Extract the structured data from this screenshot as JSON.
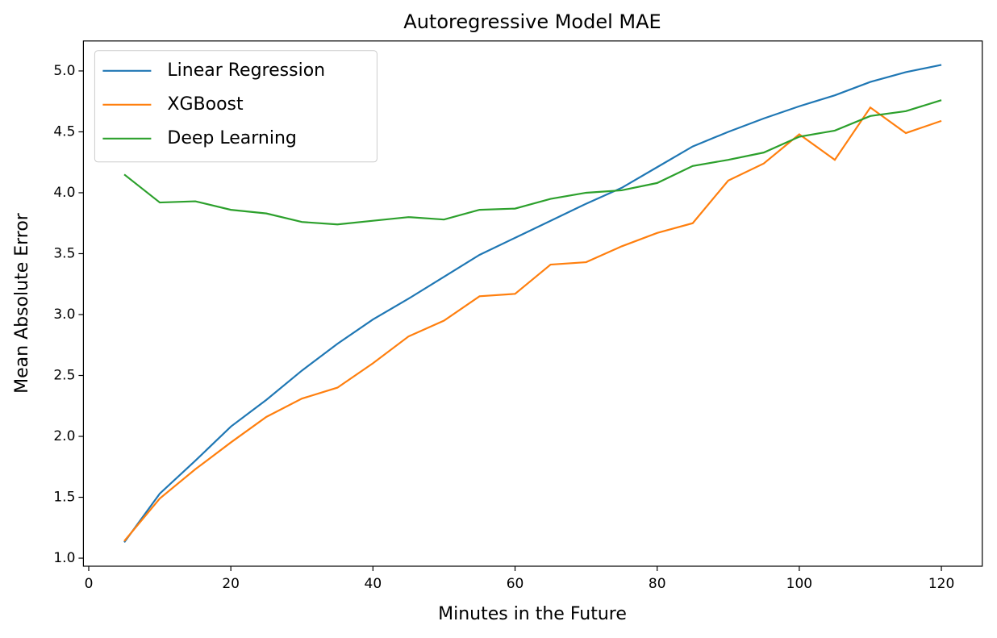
{
  "chart_data": {
    "type": "line",
    "title": "Autoregressive Model MAE",
    "x_label": "Minutes in the Future",
    "y_label": "Mean Absolute Error",
    "x": [
      5,
      10,
      15,
      20,
      25,
      30,
      35,
      40,
      45,
      50,
      55,
      60,
      65,
      70,
      75,
      80,
      85,
      90,
      95,
      100,
      105,
      110,
      115,
      120
    ],
    "series": [
      {
        "name": "Linear Regression",
        "color": "#1f77b4",
        "values": [
          1.13,
          1.53,
          1.8,
          2.08,
          2.3,
          2.54,
          2.76,
          2.96,
          3.13,
          3.31,
          3.49,
          3.63,
          3.77,
          3.91,
          4.04,
          4.21,
          4.38,
          4.5,
          4.61,
          4.71,
          4.8,
          4.91,
          4.99,
          5.05
        ]
      },
      {
        "name": "XGBoost",
        "color": "#ff7f0e",
        "values": [
          1.14,
          1.49,
          1.73,
          1.95,
          2.16,
          2.31,
          2.4,
          2.6,
          2.82,
          2.95,
          3.15,
          3.17,
          3.41,
          3.43,
          3.56,
          3.67,
          3.75,
          4.1,
          4.24,
          4.48,
          4.27,
          4.7,
          4.49,
          4.59
        ]
      },
      {
        "name": "Deep Learning",
        "color": "#2ca02c",
        "values": [
          4.15,
          3.92,
          3.93,
          3.86,
          3.83,
          3.76,
          3.74,
          3.77,
          3.8,
          3.78,
          3.86,
          3.87,
          3.95,
          4.0,
          4.02,
          4.08,
          4.22,
          4.27,
          4.33,
          4.46,
          4.51,
          4.63,
          4.67,
          4.76
        ]
      }
    ],
    "xlim": [
      -0.75,
      125.75
    ],
    "xticks": [
      0,
      20,
      40,
      60,
      80,
      100,
      120
    ],
    "ylim": [
      0.934,
      5.246
    ],
    "yticks": [
      {
        "value": 1.0,
        "label": "1.0"
      },
      {
        "value": 1.5,
        "label": "1.5"
      },
      {
        "value": 2.0,
        "label": "2.0"
      },
      {
        "value": 2.5,
        "label": "2.5"
      },
      {
        "value": 3.0,
        "label": "3.0"
      },
      {
        "value": 3.5,
        "label": "3.5"
      },
      {
        "value": 4.0,
        "label": "4.0"
      },
      {
        "value": 4.5,
        "label": "4.5"
      },
      {
        "value": 5.0,
        "label": "5.0"
      }
    ],
    "grid": false,
    "legend": "upper-left"
  }
}
